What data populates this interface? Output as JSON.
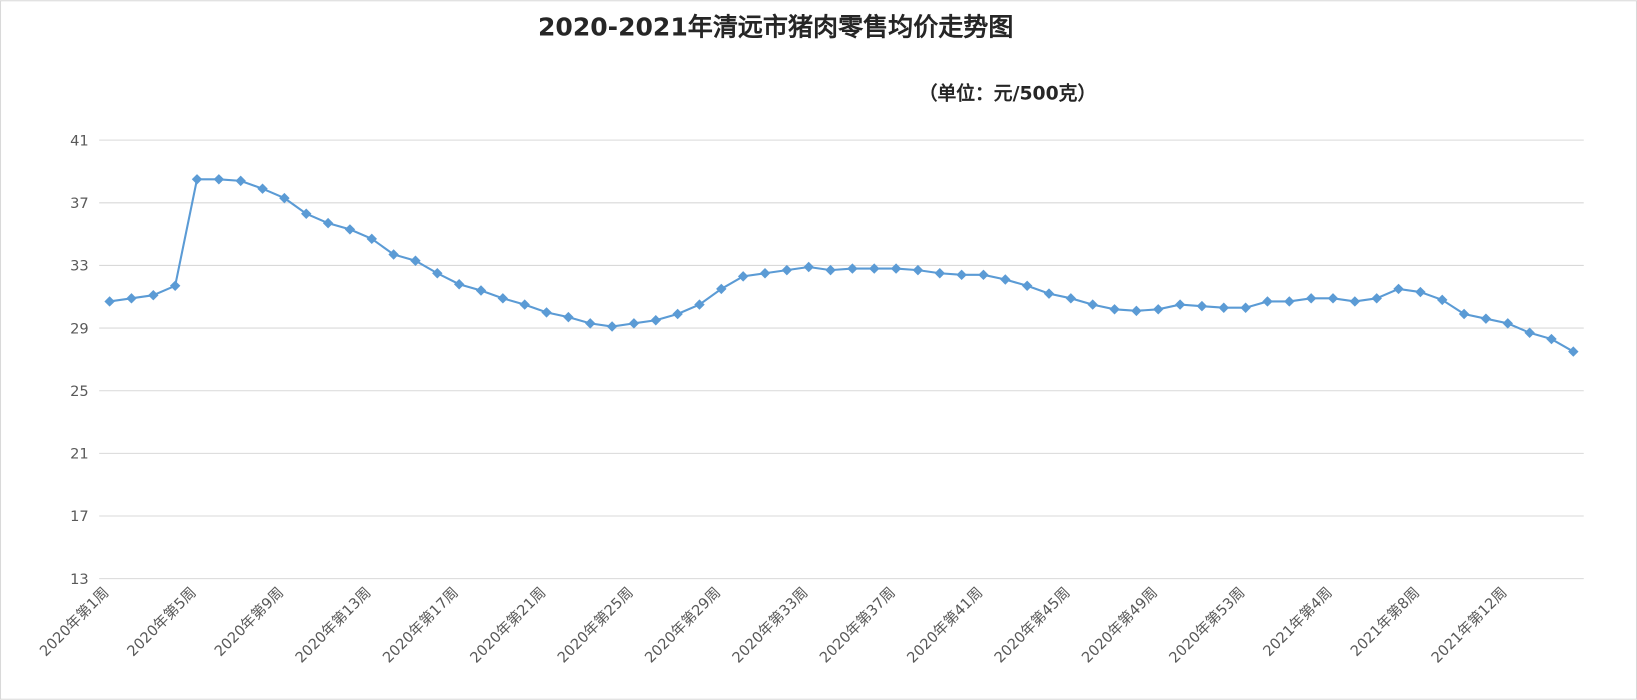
{
  "chart_data": {
    "type": "line",
    "title": "2020-2021年清远市猪肉零售均价走势图",
    "subtitle": "（单位：元/500克）",
    "categories": [
      "2020年第1周",
      null,
      null,
      null,
      "2020年第5周",
      null,
      null,
      null,
      "2020年第9周",
      null,
      null,
      null,
      "2020年第13周",
      null,
      null,
      null,
      "2020年第17周",
      null,
      null,
      null,
      "2020年第21周",
      null,
      null,
      null,
      "2020年第25周",
      null,
      null,
      null,
      "2020年第29周",
      null,
      null,
      null,
      "2020年第33周",
      null,
      null,
      null,
      "2020年第37周",
      null,
      null,
      null,
      "2020年第41周",
      null,
      null,
      null,
      "2020年第45周",
      null,
      null,
      null,
      "2020年第49周",
      null,
      null,
      null,
      "2020年第53周",
      null,
      null,
      null,
      "2021年第4周",
      null,
      null,
      null,
      "2021年第8周",
      null,
      null,
      null,
      "2021年第12周",
      null,
      null,
      null
    ],
    "series": [
      {
        "name": "猪肉零售均价",
        "color": "#5b9bd5",
        "values": [
          30.7,
          30.9,
          31.1,
          31.7,
          38.5,
          38.5,
          38.4,
          37.9,
          37.3,
          36.3,
          35.7,
          35.3,
          34.7,
          33.7,
          33.3,
          32.5,
          31.8,
          31.4,
          30.9,
          30.5,
          30.0,
          29.7,
          29.3,
          29.1,
          29.3,
          29.5,
          29.9,
          30.5,
          31.5,
          32.3,
          32.5,
          32.7,
          32.9,
          32.7,
          32.8,
          32.8,
          32.8,
          32.7,
          32.5,
          32.4,
          32.4,
          32.1,
          31.7,
          31.2,
          30.9,
          30.5,
          30.2,
          30.1,
          30.2,
          30.5,
          30.4,
          30.3,
          30.3,
          30.7,
          30.7,
          30.9,
          30.9,
          30.7,
          30.9,
          31.5,
          31.3,
          30.8,
          29.9,
          29.6,
          29.3,
          28.7,
          28.3,
          27.5
        ]
      }
    ],
    "ylim": [
      13,
      41
    ],
    "yticks": [
      13,
      17,
      21,
      25,
      29,
      33,
      37,
      41
    ],
    "grid": true
  }
}
